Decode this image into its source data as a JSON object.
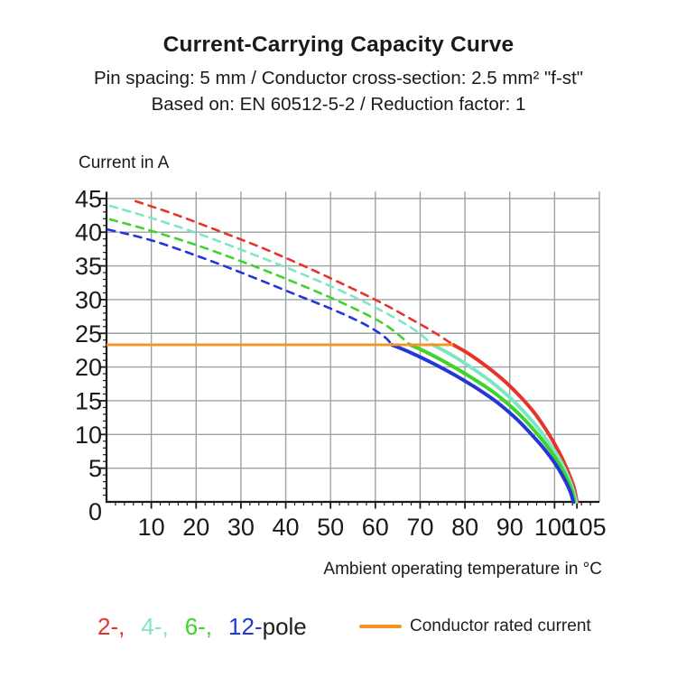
{
  "page": {
    "background": "#ffffff"
  },
  "header": {
    "title": "Current-Carrying Capacity Curve",
    "subtitle1": "Pin spacing: 5 mm / Conductor cross-section: 2.5 mm² \"f-st\"",
    "subtitle2": "Based on: EN 60512-5-2 / Reduction factor: 1"
  },
  "chart_data": {
    "type": "line",
    "title": "Current-Carrying Capacity Curve",
    "ylabel": "Current in A",
    "xlabel": "Ambient operating temperature in °C",
    "xlim": [
      0,
      110
    ],
    "ylim": [
      0,
      46
    ],
    "x_ticks": [
      10,
      20,
      30,
      40,
      50,
      60,
      70,
      80,
      90,
      100,
      105
    ],
    "y_ticks": [
      0,
      5,
      10,
      15,
      20,
      25,
      30,
      35,
      40,
      45
    ],
    "x_minor_step": 2,
    "y_minor_step": 1,
    "grid": true,
    "grid_color": "#9aa3a0",
    "axis_color": "#1a1a1a",
    "rated_current": {
      "label": "Conductor rated current",
      "value": 23.3,
      "x_start": 0,
      "x_end": 77.4,
      "color": "#f79421"
    },
    "series": [
      {
        "name": "2-pole",
        "color": "#e8332b",
        "dashed": [
          [
            6.5,
            44.6
          ],
          [
            15,
            42.7
          ],
          [
            25,
            40.2
          ],
          [
            35,
            37.6
          ],
          [
            45,
            34.7
          ],
          [
            55,
            31.6
          ],
          [
            62,
            29.3
          ],
          [
            68,
            27.1
          ],
          [
            73,
            25.2
          ],
          [
            77.4,
            23.3
          ]
        ],
        "solid": [
          [
            77.4,
            23.3
          ],
          [
            81,
            21.9
          ],
          [
            85,
            20.0
          ],
          [
            89,
            17.8
          ],
          [
            92.5,
            15.5
          ],
          [
            95.5,
            13.2
          ],
          [
            98,
            10.8
          ],
          [
            100,
            8.6
          ],
          [
            101.8,
            6.3
          ],
          [
            103.2,
            4.2
          ],
          [
            104.3,
            2.2
          ],
          [
            105,
            0
          ]
        ]
      },
      {
        "name": "4-pole",
        "color": "#7fe6c5",
        "dashed": [
          [
            0.8,
            43.9
          ],
          [
            10,
            42.1
          ],
          [
            20,
            39.9
          ],
          [
            30,
            37.4
          ],
          [
            40,
            34.8
          ],
          [
            50,
            32.0
          ],
          [
            58,
            29.5
          ],
          [
            64,
            27.4
          ],
          [
            69,
            25.4
          ],
          [
            72.8,
            23.3
          ]
        ],
        "solid": [
          [
            72.8,
            23.3
          ],
          [
            77,
            21.8
          ],
          [
            81,
            20.1
          ],
          [
            85.5,
            18.0
          ],
          [
            89.5,
            15.8
          ],
          [
            93,
            13.5
          ],
          [
            96,
            11.2
          ],
          [
            98.5,
            9.0
          ],
          [
            100.7,
            6.8
          ],
          [
            102.3,
            4.8
          ],
          [
            103.6,
            2.8
          ],
          [
            104.5,
            0.9
          ],
          [
            104.8,
            0
          ]
        ]
      },
      {
        "name": "6-pole",
        "color": "#3fd42c",
        "dashed": [
          [
            0.8,
            41.9
          ],
          [
            10,
            40.2
          ],
          [
            20,
            38.1
          ],
          [
            30,
            35.7
          ],
          [
            40,
            33.1
          ],
          [
            50,
            30.3
          ],
          [
            58,
            27.8
          ],
          [
            63,
            25.9
          ],
          [
            67.8,
            23.3
          ]
        ],
        "solid": [
          [
            67.8,
            23.3
          ],
          [
            72,
            22.0
          ],
          [
            77,
            20.2
          ],
          [
            82,
            18.2
          ],
          [
            86.5,
            16.2
          ],
          [
            90.5,
            14.0
          ],
          [
            94,
            11.7
          ],
          [
            97,
            9.4
          ],
          [
            99.5,
            7.2
          ],
          [
            101.5,
            5.1
          ],
          [
            103,
            3.1
          ],
          [
            104.1,
            1.2
          ],
          [
            104.4,
            0
          ]
        ]
      },
      {
        "name": "12-pole",
        "color": "#2536d9",
        "dashed": [
          [
            0.3,
            40.4
          ],
          [
            10,
            38.8
          ],
          [
            21,
            36.3
          ],
          [
            32,
            33.5
          ],
          [
            42,
            30.8
          ],
          [
            51,
            28.4
          ],
          [
            58,
            26.2
          ],
          [
            62,
            24.5
          ],
          [
            63.7,
            23.3
          ]
        ],
        "solid": [
          [
            63.7,
            23.3
          ],
          [
            68,
            22.1
          ],
          [
            73,
            20.5
          ],
          [
            78,
            18.7
          ],
          [
            83,
            16.7
          ],
          [
            87.5,
            14.6
          ],
          [
            91.5,
            12.3
          ],
          [
            95,
            9.9
          ],
          [
            98,
            7.6
          ],
          [
            100.3,
            5.5
          ],
          [
            102,
            3.6
          ],
          [
            103.4,
            1.7
          ],
          [
            104.2,
            0
          ]
        ]
      }
    ]
  },
  "legend": {
    "pole_items": [
      {
        "label": "2-,",
        "color": "#e8332b"
      },
      {
        "label": "4-,",
        "color": "#7fe6c5"
      },
      {
        "label": "6-,",
        "color": "#3fd42c"
      },
      {
        "label": "12-",
        "color": "#2536d9"
      }
    ],
    "pole_suffix": "pole",
    "rated_label": "Conductor rated current",
    "rated_color": "#f79421"
  }
}
